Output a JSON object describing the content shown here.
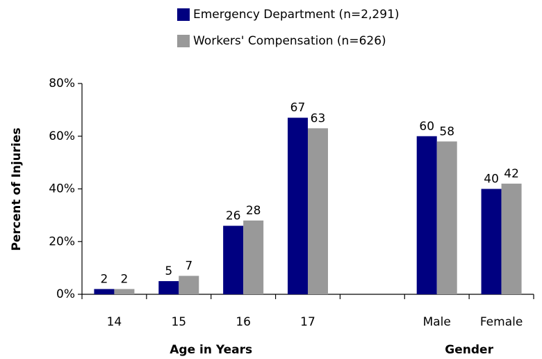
{
  "chart_data": {
    "type": "bar",
    "categories": [
      "14",
      "15",
      "16",
      "17",
      null,
      "Male",
      "Female"
    ],
    "series": [
      {
        "name": "Emergency Department (n=2,291)",
        "color": "#000080",
        "values": [
          2,
          5,
          26,
          67,
          null,
          60,
          40
        ]
      },
      {
        "name": "Workers' Compensation (n=626)",
        "color": "#999999",
        "values": [
          2,
          7,
          28,
          63,
          null,
          58,
          42
        ]
      }
    ],
    "ylabel": "Percent of Injuries",
    "xlabels": [
      "Age in Years",
      "Gender"
    ],
    "ylim": [
      0,
      80
    ],
    "yticks": [
      {
        "value": 0,
        "label": "0%"
      },
      {
        "value": 20,
        "label": "20%"
      },
      {
        "value": 40,
        "label": "40%"
      },
      {
        "value": 60,
        "label": "60%"
      },
      {
        "value": 80,
        "label": "80%"
      }
    ],
    "grid": false,
    "legend": "top"
  }
}
